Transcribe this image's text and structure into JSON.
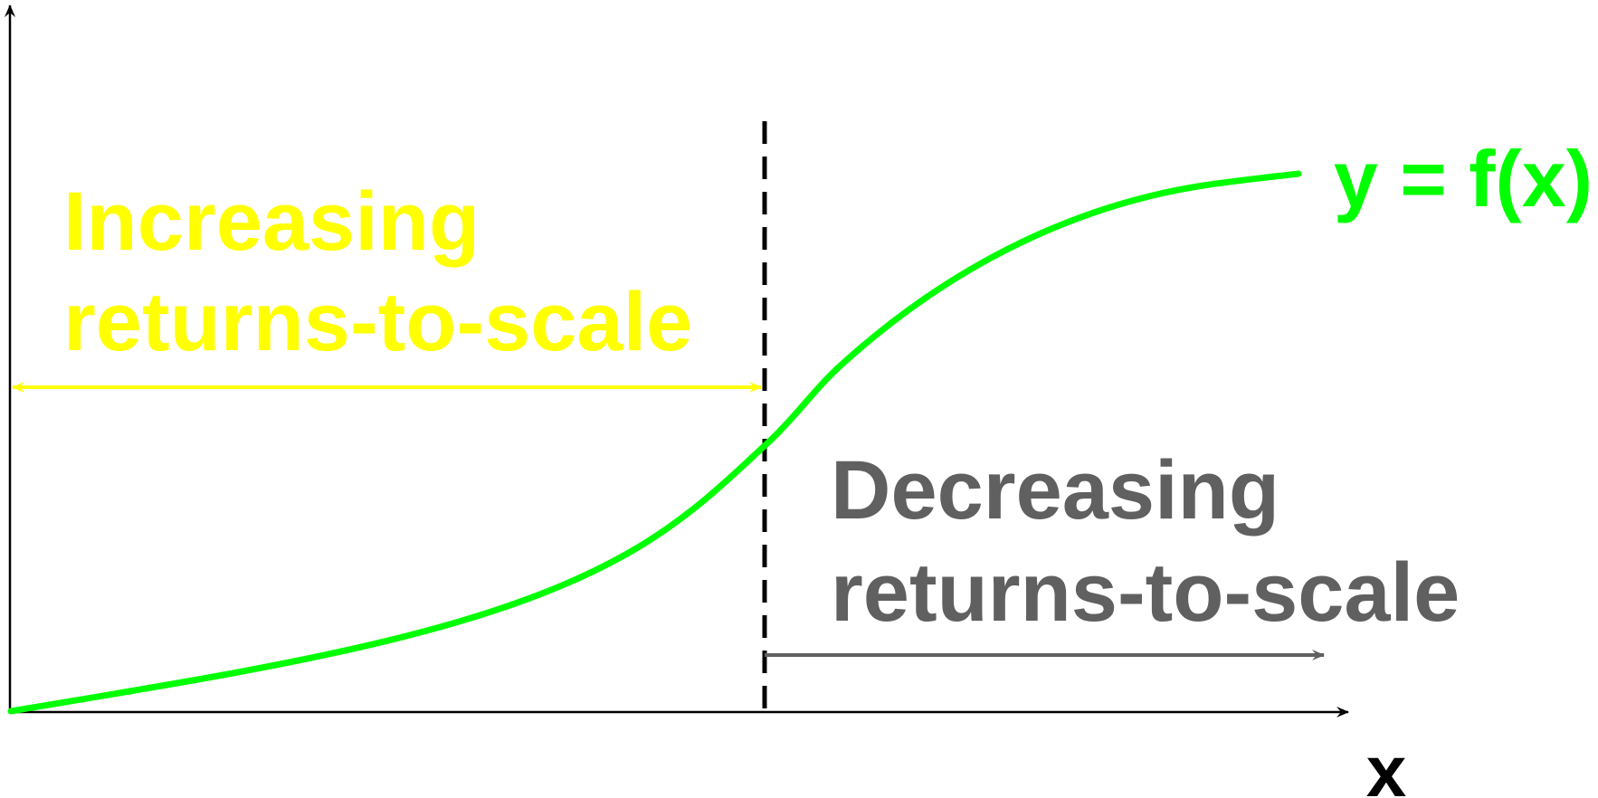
{
  "curve_label": "y = f(x)",
  "x_axis_label": "x",
  "increasing_region": {
    "line1": "Increasing",
    "line2": "returns-to-scale"
  },
  "decreasing_region": {
    "line1": "Decreasing",
    "line2": "returns-to-scale"
  },
  "colors": {
    "curve": "#00ff00",
    "increasing": "#ffff00",
    "decreasing": "#606060",
    "axes": "#000000",
    "divider": "#000000"
  }
}
